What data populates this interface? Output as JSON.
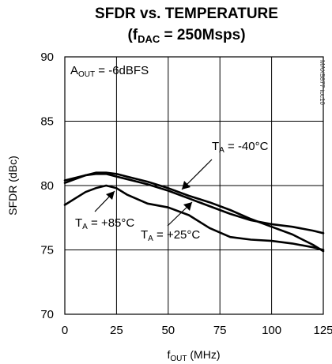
{
  "chart_data": {
    "type": "line",
    "title_line1": "SFDR vs. TEMPERATURE",
    "title_line2_prefix": "(f",
    "title_line2_sub": "DAC",
    "title_line2_suffix": " = 250Msps)",
    "xlabel_main": "f",
    "xlabel_sub": "OUT",
    "xlabel_suffix": " (MHz)",
    "ylabel": "SFDR (dBc)",
    "xlim": [
      0,
      125
    ],
    "ylim": [
      70,
      90
    ],
    "xticks": [
      0,
      25,
      50,
      75,
      100,
      125
    ],
    "yticks": [
      70,
      75,
      80,
      85,
      90
    ],
    "grid": true,
    "condition": {
      "main": "A",
      "sub": "OUT",
      "suffix": " = -6dBFS"
    },
    "part_code": "MAX5877 toc10",
    "series": [
      {
        "label": {
          "main": "T",
          "sub": "A",
          "suffix": " = -40°C"
        },
        "x": [
          0,
          5,
          10,
          15,
          20,
          25,
          30,
          40,
          50,
          60,
          70,
          80,
          90,
          100,
          110,
          120,
          125
        ],
        "y": [
          80.2,
          80.5,
          80.8,
          81.0,
          81.0,
          80.9,
          80.7,
          80.3,
          79.8,
          79.2,
          78.7,
          78.1,
          77.4,
          76.8,
          76.2,
          75.4,
          74.9
        ]
      },
      {
        "label": {
          "main": "T",
          "sub": "A",
          "suffix": " = +85°C"
        },
        "x": [
          0,
          5,
          10,
          15,
          20,
          25,
          30,
          40,
          50,
          60,
          70,
          80,
          90,
          100,
          110,
          120,
          125
        ],
        "y": [
          78.5,
          79.0,
          79.5,
          79.8,
          80.0,
          79.8,
          79.3,
          78.6,
          78.3,
          77.7,
          76.7,
          76.0,
          75.8,
          75.7,
          75.5,
          75.2,
          75.0
        ]
      },
      {
        "label": {
          "main": "T",
          "sub": "A",
          "suffix": " = +25°C"
        },
        "x": [
          0,
          5,
          10,
          15,
          20,
          25,
          30,
          40,
          50,
          60,
          70,
          80,
          90,
          100,
          110,
          120,
          125
        ],
        "y": [
          80.4,
          80.6,
          80.8,
          80.9,
          80.9,
          80.7,
          80.5,
          80.1,
          79.6,
          79.0,
          78.4,
          77.8,
          77.3,
          77.0,
          76.8,
          76.5,
          76.3
        ]
      }
    ],
    "line_color": "#000000"
  }
}
